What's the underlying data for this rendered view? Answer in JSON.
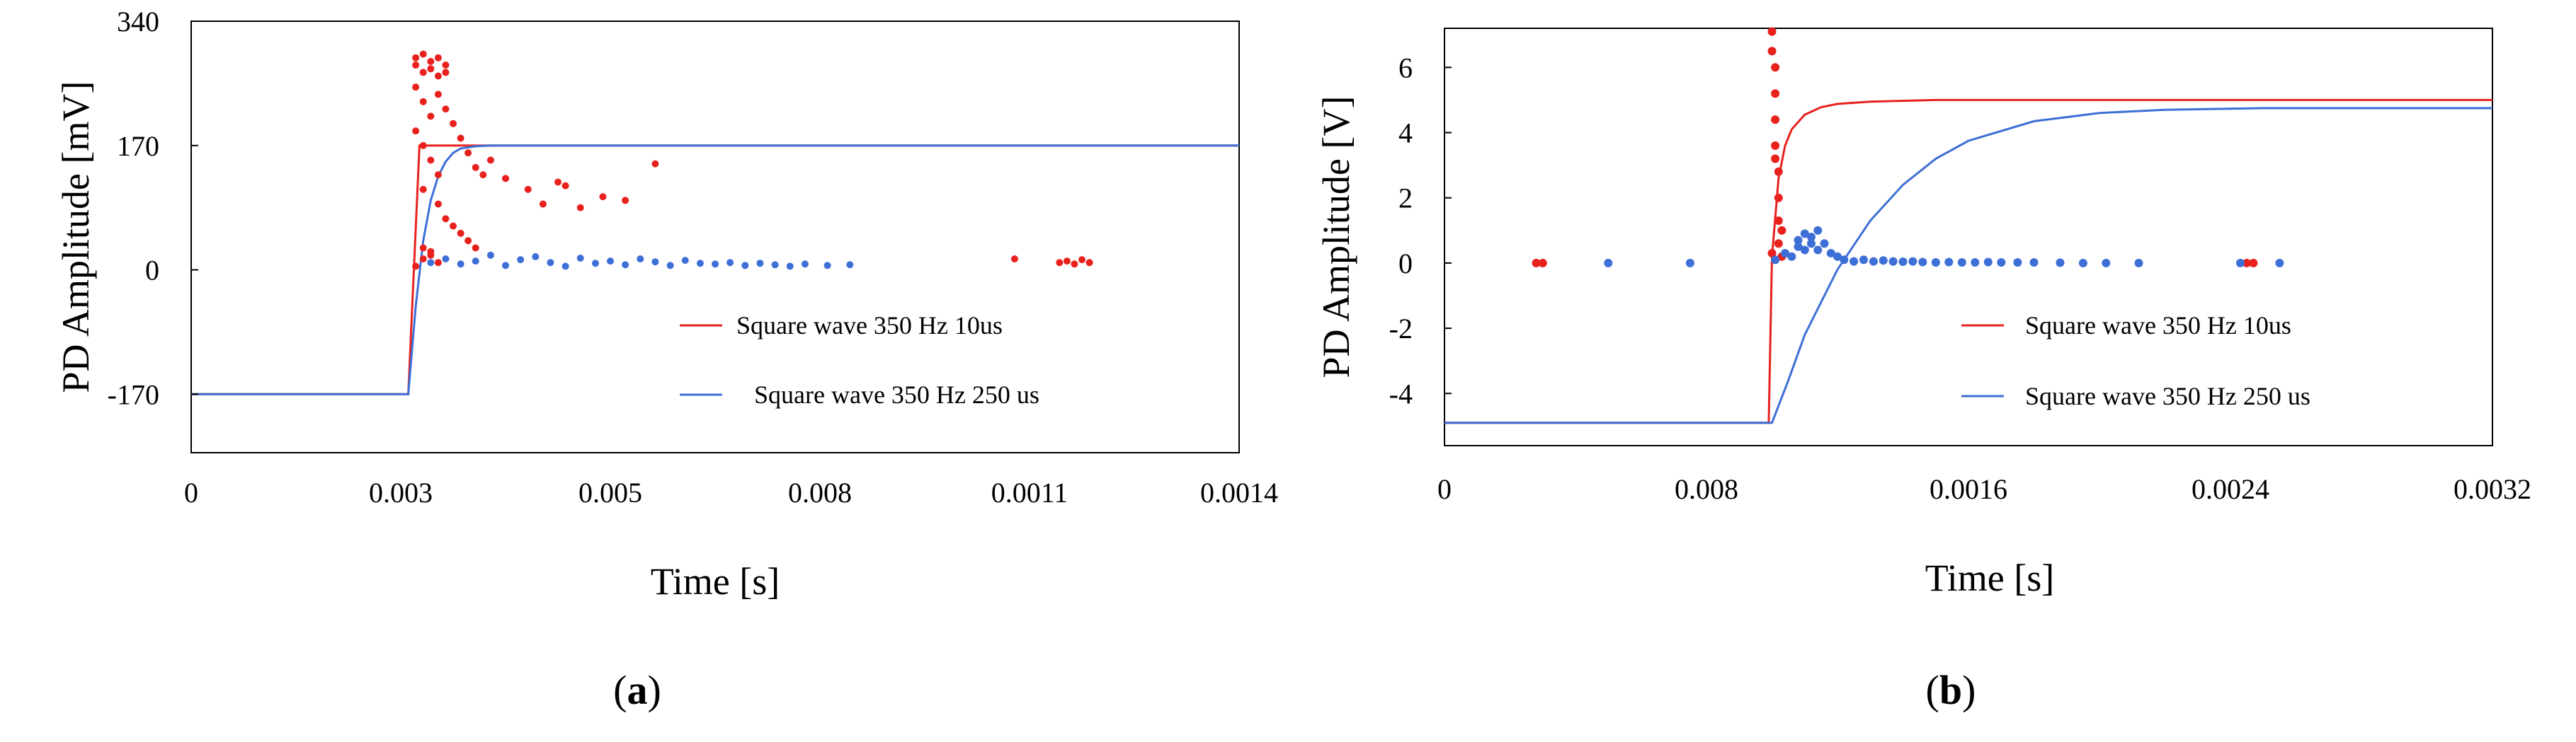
{
  "chart_data": [
    {
      "panel": "a",
      "type": "scatter",
      "title": "",
      "xlabel": "Time [s]",
      "ylabel": "PD Amplitude [mV]",
      "x_tick_labels": [
        "0",
        "0.003",
        "0.005",
        "0.008",
        "0.0011",
        "0.0014"
      ],
      "y_tick_labels": [
        "340",
        "170",
        "0",
        "-170"
      ],
      "y_ticks": [
        340,
        170,
        0,
        -170
      ],
      "xlim": [
        0,
        0.0014
      ],
      "ylim": [
        -250,
        340
      ],
      "grid": false,
      "legend_position": "bottom-right",
      "series": [
        {
          "name": "Square wave 350 Hz 10us",
          "color": "#e8211d",
          "line": {
            "x": [
              0,
              0.00029,
              0.000305,
              0.0014
            ],
            "y": [
              -170,
              -170,
              170,
              170
            ]
          },
          "points": {
            "x": [
              0.0003,
              0.0003,
              0.00031,
              0.00031,
              0.00032,
              0.00032,
              0.00033,
              0.00033,
              0.00034,
              0.00034,
              0.0003,
              0.00031,
              0.00032,
              0.00033,
              0.00034,
              0.0003,
              0.00031,
              0.00032,
              0.00033,
              0.00035,
              0.00036,
              0.00037,
              0.00038,
              0.00031,
              0.00033,
              0.00034,
              0.00035,
              0.00036,
              0.00037,
              0.00038,
              0.00039,
              0.0004,
              0.00042,
              0.00045,
              0.00047,
              0.00049,
              0.0005,
              0.00052,
              0.00055,
              0.00058,
              0.00062,
              0.00031,
              0.00032,
              0.00033,
              0.0003,
              0.00031,
              0.00032,
              0.0011,
              0.00116,
              0.00117,
              0.00118,
              0.00119,
              0.0012
            ],
            "y": [
              290,
              280,
              270,
              295,
              285,
              275,
              290,
              265,
              280,
              270,
              250,
              230,
              210,
              240,
              220,
              190,
              170,
              150,
              130,
              200,
              180,
              160,
              140,
              110,
              90,
              70,
              60,
              50,
              40,
              30,
              130,
              150,
              125,
              110,
              90,
              120,
              115,
              85,
              100,
              95,
              145,
              30,
              20,
              10,
              5,
              15,
              25,
              15,
              10,
              12,
              8,
              14,
              10
            ]
          }
        },
        {
          "name": "Square wave 350 Hz 250 us",
          "color": "#3d6fd6",
          "line": {
            "x": [
              0,
              0.00029,
              0.0003,
              0.00031,
              0.00032,
              0.00033,
              0.00034,
              0.00035,
              0.00036,
              0.00038,
              0.0004,
              0.0014
            ],
            "y": [
              -170,
              -170,
              -50,
              40,
              95,
              128,
              148,
              160,
              166,
              169,
              170,
              170
            ]
          },
          "points": {
            "x": [
              0.00032,
              0.00034,
              0.00036,
              0.00038,
              0.0004,
              0.00042,
              0.00044,
              0.00046,
              0.00048,
              0.0005,
              0.00052,
              0.00054,
              0.00056,
              0.00058,
              0.0006,
              0.00062,
              0.00064,
              0.00066,
              0.00068,
              0.0007,
              0.00072,
              0.00074,
              0.00076,
              0.00078,
              0.0008,
              0.00082,
              0.00085,
              0.00088
            ],
            "y": [
              10,
              15,
              8,
              12,
              20,
              6,
              14,
              18,
              10,
              5,
              16,
              9,
              12,
              7,
              15,
              11,
              6,
              13,
              9,
              8,
              10,
              6,
              9,
              7,
              5,
              8,
              6,
              7
            ]
          }
        }
      ]
    },
    {
      "panel": "b",
      "type": "scatter",
      "title": "",
      "xlabel": "Time [s]",
      "ylabel": "PD Amplitude [V]",
      "x_tick_labels": [
        "0",
        "0.008",
        "0.0016",
        "0.0024",
        "0.0032"
      ],
      "y_tick_labels": [
        "6",
        "4",
        "2",
        "0",
        "-2",
        "-4"
      ],
      "y_ticks": [
        6,
        4,
        2,
        0,
        -2,
        -4
      ],
      "xlim": [
        0,
        0.0032
      ],
      "ylim": [
        -5.6,
        7.2
      ],
      "grid": false,
      "legend_position": "bottom-right",
      "series": [
        {
          "name": "Square wave 350 Hz 10us",
          "color": "#e8211d",
          "line": {
            "x": [
              0,
              0.00099,
              0.001,
              0.00102,
              0.00104,
              0.00106,
              0.0011,
              0.00115,
              0.0012,
              0.0013,
              0.0015,
              0.0032
            ],
            "y": [
              -4.9,
              -4.9,
              0.2,
              2.6,
              3.6,
              4.1,
              4.55,
              4.78,
              4.88,
              4.95,
              5.0,
              5.0
            ]
          },
          "points": {
            "x": [
              0.00028,
              0.0003,
              0.001,
              0.001,
              0.00101,
              0.00101,
              0.00101,
              0.00101,
              0.00102,
              0.00102,
              0.00102,
              0.00102,
              0.00101,
              0.00103,
              0.00103,
              0.001,
              0.00101,
              0.00245,
              0.00247
            ],
            "y": [
              0,
              0,
              7.1,
              6.5,
              6.0,
              5.2,
              4.4,
              3.6,
              2.8,
              2.0,
              1.3,
              0.6,
              3.2,
              1.0,
              0.2,
              0.3,
              0.1,
              0,
              0
            ]
          }
        },
        {
          "name": "Square wave 350 Hz 250 us",
          "color": "#3d6fd6",
          "line": {
            "x": [
              0,
              0.001,
              0.00105,
              0.0011,
              0.0012,
              0.0013,
              0.0014,
              0.0015,
              0.0016,
              0.0018,
              0.002,
              0.0022,
              0.0025,
              0.0032
            ],
            "y": [
              -4.9,
              -4.9,
              -3.6,
              -2.2,
              -0.2,
              1.3,
              2.4,
              3.2,
              3.75,
              4.35,
              4.6,
              4.7,
              4.75,
              4.75
            ]
          },
          "points": {
            "x": [
              0.0005,
              0.00075,
              0.00101,
              0.00104,
              0.00106,
              0.00108,
              0.0011,
              0.00112,
              0.00114,
              0.00116,
              0.00118,
              0.0012,
              0.00122,
              0.00125,
              0.00128,
              0.00131,
              0.00134,
              0.00137,
              0.0014,
              0.00143,
              0.00146,
              0.0015,
              0.00154,
              0.00158,
              0.00162,
              0.00166,
              0.0017,
              0.00175,
              0.0018,
              0.00188,
              0.00195,
              0.00202,
              0.00212,
              0.00243,
              0.00255,
              0.00108,
              0.0011,
              0.00112,
              0.00114
            ],
            "y": [
              0,
              0,
              0.1,
              0.3,
              0.2,
              0.5,
              0.4,
              0.8,
              1.0,
              0.6,
              0.3,
              0.2,
              0.1,
              0.05,
              0.1,
              0.05,
              0.08,
              0.05,
              0.04,
              0.05,
              0.03,
              0.02,
              0.03,
              0.02,
              0.02,
              0.03,
              0.02,
              0.02,
              0.02,
              0.01,
              0,
              0,
              0,
              0,
              0,
              0.7,
              0.9,
              0.6,
              0.4
            ]
          }
        }
      ]
    }
  ],
  "panel_labels": [
    {
      "open": "(",
      "letter": "a",
      "close": ")"
    },
    {
      "open": "(",
      "letter": "b",
      "close": ")"
    }
  ]
}
